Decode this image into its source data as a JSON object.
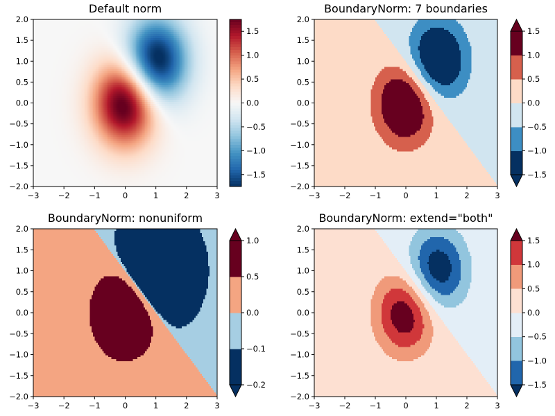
{
  "figure": {
    "width": 800,
    "height": 600,
    "background": "#ffffff"
  },
  "chart_data": [
    {
      "type": "heatmap",
      "title": "Default norm",
      "xlim": [
        -3,
        3
      ],
      "ylim": [
        -2,
        2
      ],
      "xticks": [
        -3,
        -2,
        -1,
        0,
        1,
        2,
        3
      ],
      "yticks": [
        -2.0,
        -1.5,
        -1.0,
        -0.5,
        0.0,
        0.5,
        1.0,
        1.5,
        2.0
      ],
      "x_tick_labels": [
        "−3",
        "−2",
        "−1",
        "0",
        "1",
        "2",
        "3"
      ],
      "y_tick_labels": [
        "−2.0",
        "−1.5",
        "−1.0",
        "−0.5",
        "0.0",
        "0.5",
        "1.0",
        "1.5",
        "2.0"
      ],
      "field": "Z = 2*(exp(-X^2-Y^2) - exp(-(X-1)^2-(Y-1)^2)) with positive lobe near (0,0) and negative lobe near (1,1)",
      "norm": "continuous",
      "colormap": "RdBu_r",
      "vmin": -1.75,
      "vmax": 1.75,
      "colorbar": {
        "ticks": [
          -1.5,
          -1.0,
          -0.5,
          0.0,
          0.5,
          1.0,
          1.5
        ],
        "tick_labels": [
          "−1.5",
          "−1.0",
          "−0.5",
          "0.0",
          "0.5",
          "1.0",
          "1.5"
        ],
        "extend": "neither"
      }
    },
    {
      "type": "heatmap",
      "title": "BoundaryNorm: 7 boundaries",
      "xlim": [
        -3,
        3
      ],
      "ylim": [
        -2,
        2
      ],
      "xticks": [
        -3,
        -2,
        -1,
        0,
        1,
        2,
        3
      ],
      "yticks": [
        -2.0,
        -1.5,
        -1.0,
        -0.5,
        0.0,
        0.5,
        1.0,
        1.5,
        2.0
      ],
      "x_tick_labels": [
        "−3",
        "−2",
        "−1",
        "0",
        "1",
        "2",
        "3"
      ],
      "y_tick_labels": [
        "−2.0",
        "−1.5",
        "−1.0",
        "−0.5",
        "0.0",
        "0.5",
        "1.0",
        "1.5",
        "2.0"
      ],
      "norm": "boundary",
      "boundaries": [
        -1.5,
        -1.0,
        -0.5,
        0.0,
        0.5,
        1.0,
        1.5
      ],
      "bin_colors": [
        "#053061",
        "#3d8ec3",
        "#d1e5f0",
        "#fddbc7",
        "#d6604d",
        "#67001f"
      ],
      "under_color": "#053061",
      "over_color": "#67001f",
      "colorbar": {
        "ticks": [
          -1.5,
          -1.0,
          -0.5,
          0.0,
          0.5,
          1.0,
          1.5
        ],
        "tick_labels": [
          "−1.5",
          "−1.0",
          "−0.5",
          "0.0",
          "0.5",
          "1.0",
          "1.5"
        ],
        "extend": "both",
        "spacing": "uniform",
        "under_color": "#053061",
        "over_color": "#67001f"
      }
    },
    {
      "type": "heatmap",
      "title": "BoundaryNorm: nonuniform",
      "xlim": [
        -3,
        3
      ],
      "ylim": [
        -2,
        2
      ],
      "xticks": [
        -3,
        -2,
        -1,
        0,
        1,
        2,
        3
      ],
      "yticks": [
        -2.0,
        -1.5,
        -1.0,
        -0.5,
        0.0,
        0.5,
        1.0,
        1.5,
        2.0
      ],
      "x_tick_labels": [
        "−3",
        "−2",
        "−1",
        "0",
        "1",
        "2",
        "3"
      ],
      "y_tick_labels": [
        "−2.0",
        "−1.5",
        "−1.0",
        "−0.5",
        "0.0",
        "0.5",
        "1.0",
        "1.5",
        "2.0"
      ],
      "norm": "boundary",
      "boundaries": [
        -0.2,
        -0.1,
        0.0,
        0.5,
        1.0
      ],
      "bin_colors": [
        "#053061",
        "#a6cee3",
        "#f4a582",
        "#67001f"
      ],
      "under_color": "#053061",
      "over_color": "#67001f",
      "colorbar": {
        "ticks": [
          -0.2,
          -0.1,
          0.0,
          0.5,
          1.0
        ],
        "tick_labels": [
          "−0.2",
          "−0.1",
          "0.0",
          "0.5",
          "1.0"
        ],
        "extend": "both",
        "spacing": "uniform",
        "under_color": "#053061",
        "over_color": "#67001f"
      }
    },
    {
      "type": "heatmap",
      "title": "BoundaryNorm: extend=\"both\"",
      "xlim": [
        -3,
        3
      ],
      "ylim": [
        -2,
        2
      ],
      "xticks": [
        -3,
        -2,
        -1,
        0,
        1,
        2,
        3
      ],
      "yticks": [
        -2.0,
        -1.5,
        -1.0,
        -0.5,
        0.0,
        0.5,
        1.0,
        1.5,
        2.0
      ],
      "x_tick_labels": [
        "−3",
        "−2",
        "−1",
        "0",
        "1",
        "2",
        "3"
      ],
      "y_tick_labels": [
        "−2.0",
        "−1.5",
        "−1.0",
        "−0.5",
        "0.0",
        "0.5",
        "1.0",
        "1.5",
        "2.0"
      ],
      "norm": "boundary",
      "boundaries": [
        -1.5,
        -1.0,
        -0.5,
        0.0,
        0.5,
        1.0,
        1.5
      ],
      "bin_colors": [
        "#2166ac",
        "#92c5de",
        "#e3eef7",
        "#fde0d2",
        "#f09a7a",
        "#d0373a"
      ],
      "under_color": "#053061",
      "over_color": "#67001f",
      "colorbar": {
        "ticks": [
          -1.5,
          -1.0,
          -0.5,
          0.0,
          0.5,
          1.0,
          1.5
        ],
        "tick_labels": [
          "−1.5",
          "−1.0",
          "−0.5",
          "0.0",
          "0.5",
          "1.0",
          "1.5"
        ],
        "extend": "both",
        "spacing": "uniform",
        "under_color": "#053061",
        "over_color": "#67001f"
      }
    }
  ]
}
